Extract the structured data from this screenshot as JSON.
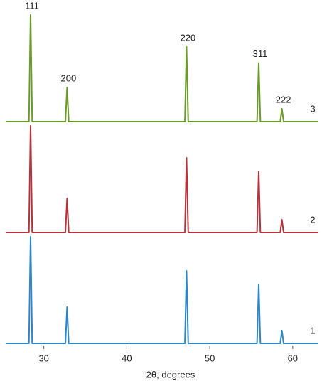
{
  "chart_data": {
    "type": "line",
    "xlabel": "2θ, degrees",
    "x": [
      25.4,
      28.2,
      28.4,
      28.6,
      32.6,
      32.8,
      33.0,
      47.0,
      47.2,
      47.4,
      55.7,
      55.9,
      56.1,
      58.5,
      58.7,
      58.9,
      63.1
    ],
    "series": [
      {
        "name": "1",
        "color": "#2f86c6",
        "values": [
          0,
          0,
          100,
          0,
          0,
          34,
          0,
          0,
          68,
          0,
          0,
          55,
          0,
          0,
          12,
          0,
          0
        ]
      },
      {
        "name": "2",
        "color": "#b5333a",
        "values": [
          0,
          0,
          100,
          0,
          0,
          32,
          0,
          0,
          70,
          0,
          0,
          57,
          0,
          0,
          12,
          0,
          0
        ]
      },
      {
        "name": "3",
        "color": "#6a9a2a",
        "values": [
          0,
          0,
          100,
          0,
          0,
          32,
          0,
          0,
          70,
          0,
          0,
          55,
          0,
          0,
          12,
          0,
          0
        ]
      }
    ],
    "annotations": [
      {
        "text": "111",
        "x": 28.4
      },
      {
        "text": "200",
        "x": 32.8
      },
      {
        "text": "220",
        "x": 47.2
      },
      {
        "text": "311",
        "x": 55.9
      },
      {
        "text": "222",
        "x": 58.7
      }
    ],
    "xlim": [
      25.4,
      63.1
    ],
    "xticks": [
      30,
      40,
      50,
      60
    ],
    "ylim": [
      0,
      104
    ]
  }
}
